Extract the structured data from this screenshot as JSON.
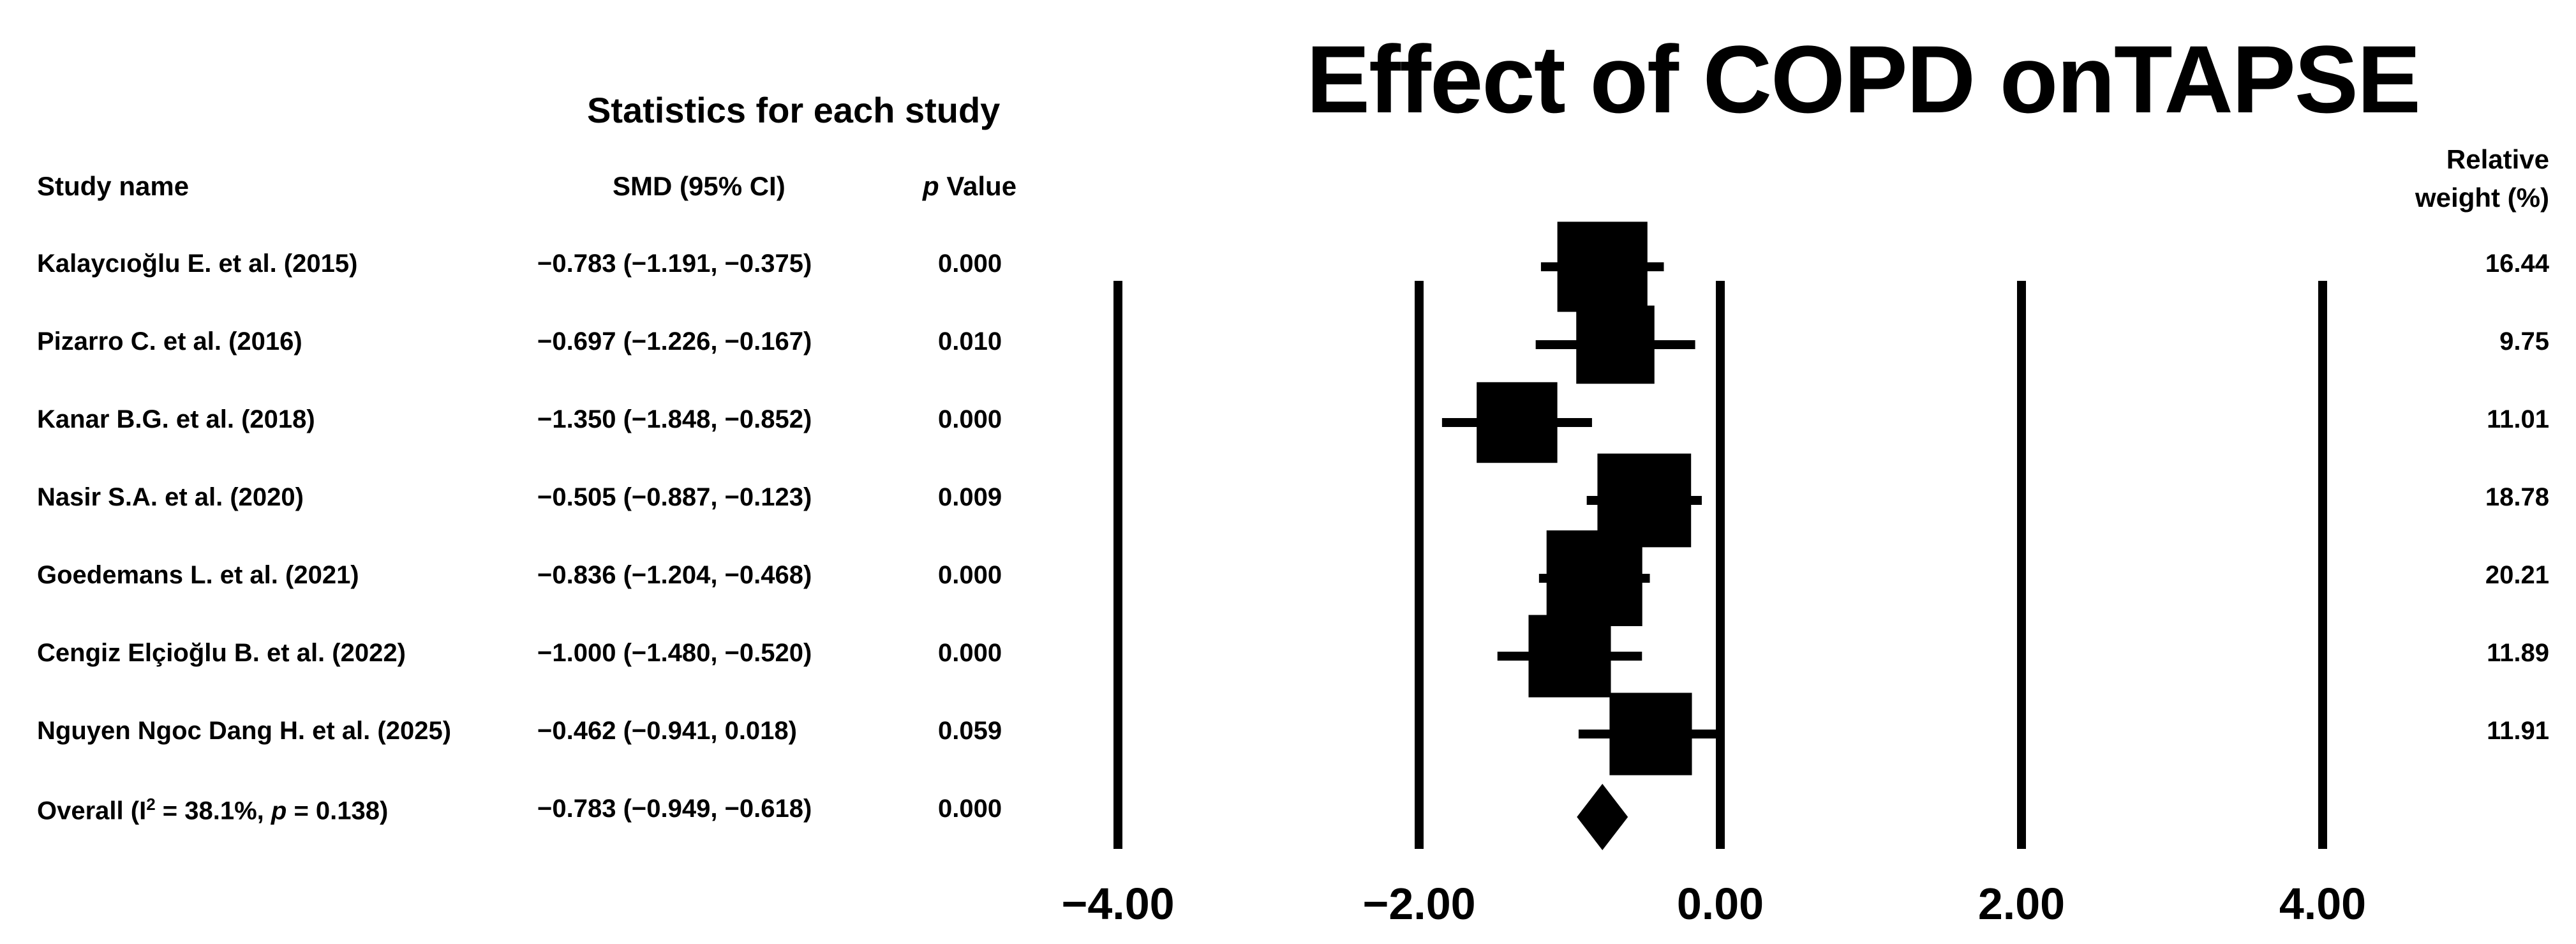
{
  "title": "Effect of COPD onTAPSE",
  "stats_header": "Statistics for each study",
  "columns": {
    "study_name": "Study name",
    "smd": "SMD (95% CI)",
    "p_italic": "p",
    "p_rest": " Value",
    "weight_line1": "Relative",
    "weight_line2": "weight (%)"
  },
  "rows": [
    {
      "name": "Kalaycıoğlu E. et al. (2015)",
      "smd_text": "−0.783 (−1.191, −0.375)",
      "p": "0.000",
      "weight": "16.44"
    },
    {
      "name": "Pizarro C. et al. (2016)",
      "smd_text": "−0.697 (−1.226, −0.167)",
      "p": "0.010",
      "weight": "9.75"
    },
    {
      "name": "Kanar B.G. et al. (2018)",
      "smd_text": "−1.350 (−1.848, −0.852)",
      "p": "0.000",
      "weight": "11.01"
    },
    {
      "name": "Nasir S.A. et al. (2020)",
      "smd_text": "−0.505 (−0.887, −0.123)",
      "p": "0.009",
      "weight": "18.78"
    },
    {
      "name": "Goedemans L. et al. (2021)",
      "smd_text": "−0.836 (−1.204, −0.468)",
      "p": "0.000",
      "weight": "20.21"
    },
    {
      "name": "Cengiz Elçioğlu B. et al. (2022)",
      "smd_text": "−1.000 (−1.480, −0.520)",
      "p": "0.000",
      "weight": "11.89"
    },
    {
      "name": "Nguyen Ngoc Dang H. et al. (2025)",
      "smd_text": "−0.462 (−0.941,  0.018)",
      "p": "0.059",
      "weight": "11.91"
    }
  ],
  "overall": {
    "name_prefix": "Overall (I",
    "name_sup": "2",
    "name_mid": " = 38.1%, ",
    "name_p": "p",
    "name_suffix": " = 0.138)",
    "smd_text": "−0.783 (−0.949, −0.618)",
    "p": "0.000"
  },
  "chart_data": {
    "type": "forest",
    "title": "Effect of COPD onTAPSE",
    "xlim": [
      -4,
      4
    ],
    "ticks": [
      -4,
      -2,
      0,
      2,
      4
    ],
    "tick_labels": [
      "−4.00",
      "−2.00",
      "0.00",
      "2.00",
      "4.00"
    ],
    "studies": [
      {
        "est": -0.783,
        "lo": -1.191,
        "hi": -0.375,
        "weight": 16.44
      },
      {
        "est": -0.697,
        "lo": -1.226,
        "hi": -0.167,
        "weight": 9.75
      },
      {
        "est": -1.35,
        "lo": -1.848,
        "hi": -0.852,
        "weight": 11.01
      },
      {
        "est": -0.505,
        "lo": -0.887,
        "hi": -0.123,
        "weight": 18.78
      },
      {
        "est": -0.836,
        "lo": -1.204,
        "hi": -0.468,
        "weight": 20.21
      },
      {
        "est": -1.0,
        "lo": -1.48,
        "hi": -0.52,
        "weight": 11.89
      },
      {
        "est": -0.462,
        "lo": -0.941,
        "hi": 0.018,
        "weight": 11.91
      }
    ],
    "overall": {
      "est": -0.783,
      "lo": -0.949,
      "hi": -0.618
    }
  }
}
